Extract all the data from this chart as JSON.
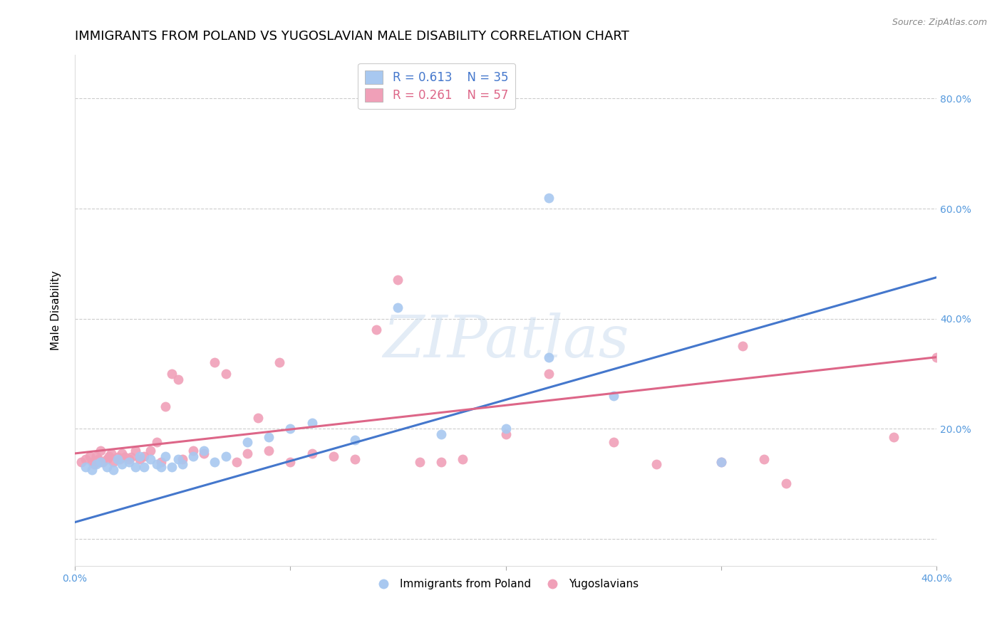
{
  "title": "IMMIGRANTS FROM POLAND VS YUGOSLAVIAN MALE DISABILITY CORRELATION CHART",
  "source": "Source: ZipAtlas.com",
  "ylabel": "Male Disability",
  "xlim": [
    0.0,
    0.4
  ],
  "ylim": [
    -0.05,
    0.88
  ],
  "yticks": [
    0.0,
    0.2,
    0.4,
    0.6,
    0.8
  ],
  "ytick_labels": [
    "",
    "20.0%",
    "40.0%",
    "60.0%",
    "80.0%"
  ],
  "xticks": [
    0.0,
    0.1,
    0.2,
    0.3,
    0.4
  ],
  "xtick_labels": [
    "0.0%",
    "",
    "",
    "",
    "40.0%"
  ],
  "background_color": "#ffffff",
  "grid_color": "#cccccc",
  "legend_R_blue": "0.613",
  "legend_N_blue": "35",
  "legend_R_pink": "0.261",
  "legend_N_pink": "57",
  "blue_color": "#a8c8f0",
  "pink_color": "#f0a0b8",
  "blue_line_color": "#4477cc",
  "pink_line_color": "#dd6688",
  "watermark": "ZIPatlas",
  "label_blue": "Immigrants from Poland",
  "label_pink": "Yugoslavians",
  "blue_scatter_x": [
    0.005,
    0.008,
    0.01,
    0.012,
    0.015,
    0.018,
    0.02,
    0.022,
    0.025,
    0.028,
    0.03,
    0.032,
    0.035,
    0.038,
    0.04,
    0.042,
    0.045,
    0.048,
    0.05,
    0.055,
    0.06,
    0.065,
    0.07,
    0.08,
    0.09,
    0.1,
    0.11,
    0.13,
    0.15,
    0.17,
    0.2,
    0.22,
    0.25,
    0.3,
    0.22
  ],
  "blue_scatter_y": [
    0.13,
    0.125,
    0.135,
    0.14,
    0.13,
    0.125,
    0.145,
    0.135,
    0.14,
    0.13,
    0.15,
    0.13,
    0.145,
    0.135,
    0.13,
    0.15,
    0.13,
    0.145,
    0.135,
    0.15,
    0.16,
    0.14,
    0.15,
    0.175,
    0.185,
    0.2,
    0.21,
    0.18,
    0.42,
    0.19,
    0.2,
    0.33,
    0.26,
    0.14,
    0.62
  ],
  "pink_scatter_x": [
    0.003,
    0.005,
    0.007,
    0.008,
    0.009,
    0.01,
    0.011,
    0.012,
    0.013,
    0.015,
    0.016,
    0.017,
    0.018,
    0.02,
    0.021,
    0.022,
    0.023,
    0.025,
    0.026,
    0.028,
    0.03,
    0.032,
    0.035,
    0.038,
    0.04,
    0.042,
    0.045,
    0.048,
    0.05,
    0.055,
    0.06,
    0.065,
    0.07,
    0.075,
    0.08,
    0.085,
    0.09,
    0.095,
    0.1,
    0.11,
    0.12,
    0.13,
    0.14,
    0.15,
    0.16,
    0.17,
    0.18,
    0.2,
    0.22,
    0.25,
    0.27,
    0.3,
    0.31,
    0.32,
    0.33,
    0.38,
    0.4
  ],
  "pink_scatter_y": [
    0.14,
    0.145,
    0.15,
    0.14,
    0.135,
    0.15,
    0.145,
    0.16,
    0.14,
    0.145,
    0.15,
    0.155,
    0.14,
    0.148,
    0.145,
    0.155,
    0.148,
    0.145,
    0.148,
    0.16,
    0.145,
    0.15,
    0.16,
    0.175,
    0.14,
    0.24,
    0.3,
    0.29,
    0.145,
    0.16,
    0.155,
    0.32,
    0.3,
    0.14,
    0.155,
    0.22,
    0.16,
    0.32,
    0.14,
    0.155,
    0.15,
    0.145,
    0.38,
    0.47,
    0.14,
    0.14,
    0.145,
    0.19,
    0.3,
    0.175,
    0.135,
    0.14,
    0.35,
    0.145,
    0.1,
    0.185,
    0.33
  ],
  "blue_line_x": [
    0.0,
    0.4
  ],
  "blue_line_y": [
    0.03,
    0.475
  ],
  "pink_line_x": [
    0.0,
    0.4
  ],
  "pink_line_y": [
    0.155,
    0.33
  ],
  "marker_size": 100,
  "title_fontsize": 13,
  "axis_fontsize": 11,
  "tick_fontsize": 10,
  "tick_color": "#5599dd",
  "legend_fontsize": 12
}
